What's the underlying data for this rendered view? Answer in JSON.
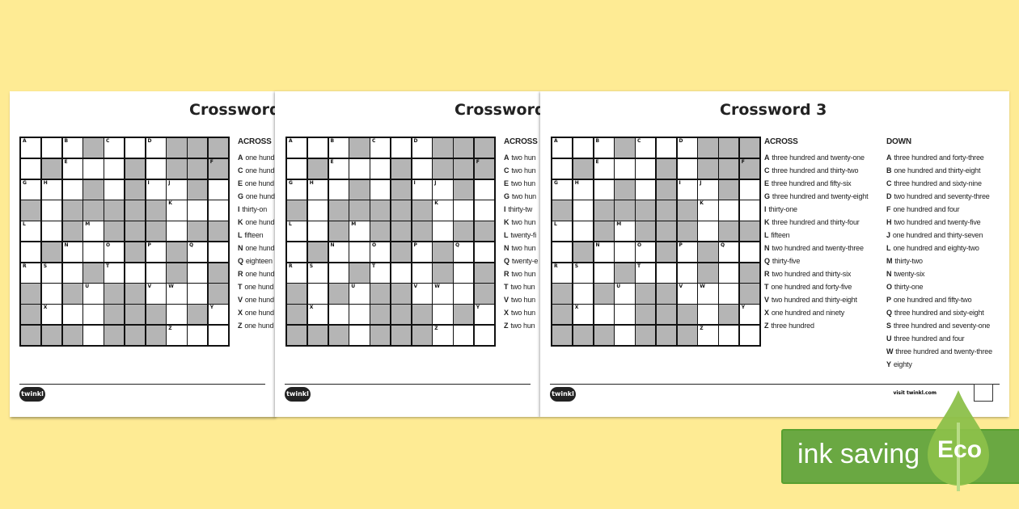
{
  "grid": {
    "shading": [
      "0001000111",
      "0100010111",
      "0001010010",
      "1011111000",
      "0010111011",
      "0100010100",
      "0001000101",
      "1010110001",
      "1000111010",
      "1110111000"
    ],
    "letters": [
      [
        "A",
        "",
        "B",
        "",
        "C",
        "",
        "D",
        "",
        "",
        ""
      ],
      [
        "",
        "",
        "E",
        "",
        "",
        "",
        "",
        "",
        "",
        "F"
      ],
      [
        "G",
        "H",
        "",
        "",
        "",
        "",
        "I",
        "J",
        "",
        ""
      ],
      [
        "",
        "",
        "",
        "",
        "",
        "",
        "",
        "K",
        "",
        ""
      ],
      [
        "L",
        "",
        "",
        "M",
        "",
        "",
        "",
        "",
        "",
        ""
      ],
      [
        "",
        "",
        "N",
        "",
        "O",
        "",
        "P",
        "",
        "Q",
        ""
      ],
      [
        "R",
        "S",
        "",
        "",
        "T",
        "",
        "",
        "",
        "",
        ""
      ],
      [
        "",
        "",
        "",
        "U",
        "",
        "",
        "V",
        "W",
        "",
        ""
      ],
      [
        "",
        "X",
        "",
        "",
        "",
        "",
        "",
        "",
        "",
        "Y"
      ],
      [
        "",
        "",
        "",
        "",
        "",
        "",
        "",
        "Z",
        "",
        ""
      ]
    ]
  },
  "pages": [
    {
      "title": "Crossword",
      "across_heading": "ACROSS",
      "across": [
        [
          "A",
          "one hund"
        ],
        [
          "C",
          "one hund"
        ],
        [
          "E",
          "one hund"
        ],
        [
          "G",
          "one hund"
        ],
        [
          "I",
          "thirty-on"
        ],
        [
          "K",
          "one hund"
        ],
        [
          "L",
          "fifteen"
        ],
        [
          "N",
          "one hund"
        ],
        [
          "Q",
          "eighteen"
        ],
        [
          "R",
          "one hund"
        ],
        [
          "T",
          "one hund"
        ],
        [
          "V",
          "one hund"
        ],
        [
          "X",
          "one hund"
        ],
        [
          "Z",
          "one hund"
        ]
      ],
      "logo": "twinkl"
    },
    {
      "title": "Crossword",
      "across_heading": "ACROSS",
      "across": [
        [
          "A",
          "two hun"
        ],
        [
          "C",
          "two hun"
        ],
        [
          "E",
          "two hun"
        ],
        [
          "G",
          "two hun"
        ],
        [
          "I",
          "thirty-tw"
        ],
        [
          "K",
          "two hun"
        ],
        [
          "L",
          "twenty-fi"
        ],
        [
          "N",
          "two hun"
        ],
        [
          "Q",
          "twenty-e"
        ],
        [
          "R",
          "two hun"
        ],
        [
          "T",
          "two hun"
        ],
        [
          "V",
          "two hun"
        ],
        [
          "X",
          "two hun"
        ],
        [
          "Z",
          "two hun"
        ]
      ],
      "logo": "twinkl"
    },
    {
      "title": "Crossword 3",
      "across_heading": "ACROSS",
      "down_heading": "DOWN",
      "across": [
        [
          "A",
          "three hundred and twenty-one"
        ],
        [
          "C",
          "three hundred and thirty-two"
        ],
        [
          "E",
          "three hundred and fifty-six"
        ],
        [
          "G",
          "three hundred and twenty-eight"
        ],
        [
          "I",
          "thirty-one"
        ],
        [
          "K",
          "three hundred and thirty-four"
        ],
        [
          "L",
          "fifteen"
        ],
        [
          "N",
          "two hundred and twenty-three"
        ],
        [
          "Q",
          "thirty-five"
        ],
        [
          "R",
          "two hundred and thirty-six"
        ],
        [
          "T",
          "one hundred and forty-five"
        ],
        [
          "V",
          "two hundred and thirty-eight"
        ],
        [
          "X",
          "one hundred and ninety"
        ],
        [
          "Z",
          "three hundred"
        ]
      ],
      "down": [
        [
          "A",
          "three hundred and forty-three"
        ],
        [
          "B",
          "one hundred and thirty-eight"
        ],
        [
          "C",
          "three hundred and sixty-nine"
        ],
        [
          "D",
          "two hundred and seventy-three"
        ],
        [
          "F",
          "one hundred and four"
        ],
        [
          "H",
          "two hundred and twenty-five"
        ],
        [
          "J",
          "one hundred and thirty-seven"
        ],
        [
          "L",
          "one hundred and eighty-two"
        ],
        [
          "M",
          "thirty-two"
        ],
        [
          "N",
          "twenty-six"
        ],
        [
          "O",
          "thirty-one"
        ],
        [
          "P",
          "one hundred and fifty-two"
        ],
        [
          "Q",
          "three hundred and sixty-eight"
        ],
        [
          "S",
          "three hundred and seventy-one"
        ],
        [
          "U",
          "three hundred and four"
        ],
        [
          "W",
          "three hundred and twenty-three"
        ],
        [
          "Y",
          "eighty"
        ]
      ],
      "logo": "twinkl",
      "visit": "visit twinkl.com"
    }
  ],
  "eco": {
    "label": "ink saving",
    "badge": "Eco",
    "color": "#6aa842"
  }
}
